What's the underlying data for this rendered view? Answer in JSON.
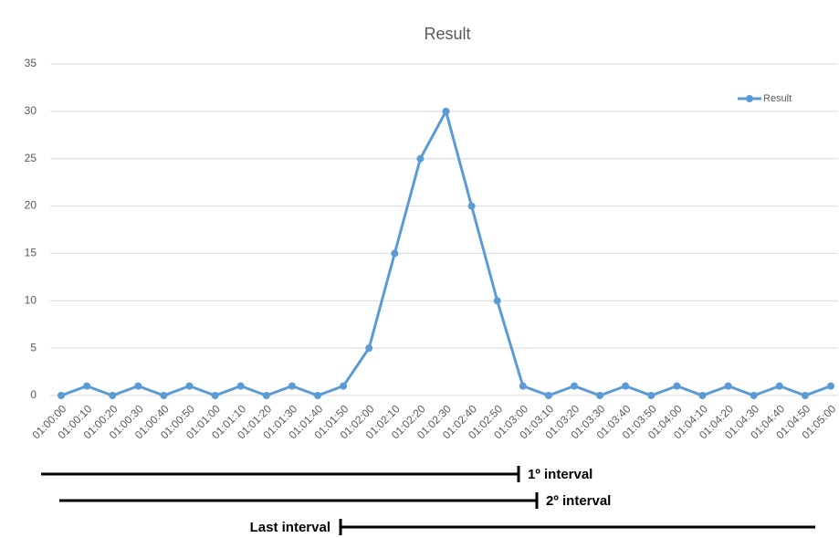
{
  "chart_data": {
    "type": "line",
    "title": "Result",
    "categories": [
      "01:00:00",
      "01:00:10",
      "01:00:20",
      "01:00:30",
      "01:00:40",
      "01:00:50",
      "01:01:00",
      "01:01:10",
      "01:01:20",
      "01:01:30",
      "01:01:40",
      "01:01:50",
      "01:02:00",
      "01:02:10",
      "01:02:20",
      "01:02:30",
      "01:02:40",
      "01:02:50",
      "01:03:00",
      "01:03:10",
      "01:03:20",
      "01:03:30",
      "01:03:40",
      "01:03:50",
      "01:04:00",
      "01:04:10",
      "01:04:20",
      "01:04:30",
      "01:04:40",
      "01:04:50",
      "01:05:00"
    ],
    "series": [
      {
        "name": "Result",
        "color": "#5b9bd5",
        "values": [
          0,
          1,
          0,
          1,
          0,
          1,
          0,
          1,
          0,
          1,
          0,
          1,
          5,
          15,
          25,
          30,
          20,
          10,
          1,
          0,
          1,
          0,
          1,
          0,
          1,
          0,
          1,
          0,
          1,
          0,
          1
        ]
      }
    ],
    "ylim": [
      0,
      35
    ],
    "yticks": [
      0,
      5,
      10,
      15,
      20,
      25,
      30,
      35
    ],
    "grid": true,
    "legend": "top-right",
    "annotations": [
      "1º interval",
      "2º interval",
      "Last interval"
    ]
  }
}
